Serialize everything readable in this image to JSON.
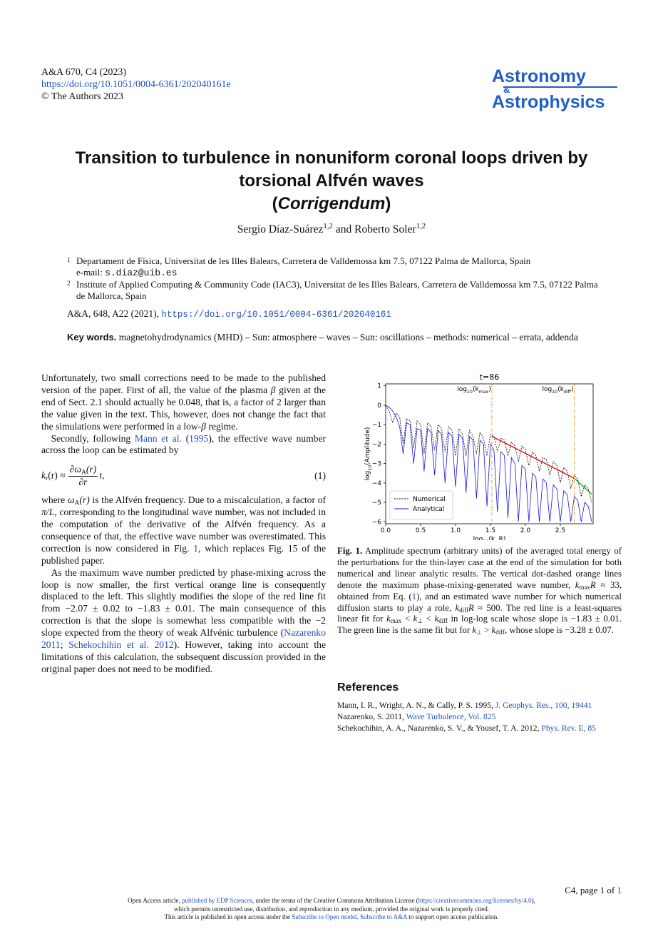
{
  "header": {
    "journal": "A&A 670, C4 (2023)",
    "doi": "https://doi.org/10.1051/0004-6361/202040161e",
    "copyright": "© The Authors 2023",
    "logo": [
      "Astronomy",
      "&",
      "Astrophysics"
    ]
  },
  "title": {
    "main": "Transition to turbulence in nonuniform coronal loops driven by torsional Alfvén waves",
    "sub": [
      "(",
      "Corrigendum",
      ")"
    ]
  },
  "authors": {
    "list": [
      {
        "name": "Sergio Díaz-Suárez",
        "aff": "1,2"
      },
      {
        "name": "Roberto Soler",
        "aff": "1,2"
      }
    ],
    "joiner": "and"
  },
  "affiliations": [
    {
      "num": "1",
      "text": "Departament de Física, Universitat de les Illes Balears, Carretera de Valldemossa km 7.5, 07122 Palma de Mallorca, Spain",
      "email_label": "e-mail:",
      "email": "s.diaz@uib.es"
    },
    {
      "num": "2",
      "text": "Institute of Applied Computing & Community Code (IAC3), Universitat de les Illes Balears, Carretera de Valldemossa km 7.5, 07122 Palma de Mallorca, Spain"
    }
  ],
  "citation": {
    "text": "A&A, 648, A22 (2021),",
    "link": "https://doi.org/10.1051/0004-6361/202040161"
  },
  "keywords": {
    "label": "Key words.",
    "text": "magnetohydrodynamics (MHD) – Sun: atmosphere – waves – Sun: oscillations – methods: numerical – errata, addenda"
  },
  "body": {
    "paragraphs": [
      [
        "Unfortunately, two small corrections need to be made to the published version of the paper. First of all, the value of the plasma ",
        "β",
        " given at the end of Sect. 2.1 should actually be 0.048, that is, a factor of 2 larger than the value given in the text. This, however, does not change the fact that the simulations were performed in a low-",
        "β",
        " regime."
      ],
      [
        "Secondly, following ",
        "Mann et al.",
        " (",
        "1995",
        "), the effective wave number across the loop can be estimated by"
      ],
      [
        "where ",
        "ω",
        "A",
        "(r)",
        " is the Alfvén frequency. Due to a miscalculation, a factor of ",
        "π/L",
        ", corresponding to the longitudinal wave number, was not included in the computation of the derivative of the Alfvén frequency. As a consequence of that, the effective wave number was overestimated. This correction is now considered in Fig. ",
        "1",
        ", which replaces Fig. 15 of the published paper."
      ],
      [
        "As the maximum wave number predicted by phase-mixing across the loop is now smaller, the first vertical orange line is consequently displaced to the left. This slightly modifies the slope of the red line fit from −2.07 ± 0.02 to −1.83 ± 0.01. The main consequence of this correction is that the slope is somewhat less compatible with the −2 slope expected from the theory of weak Alfvénic turbulence (",
        "Nazarenko 2011",
        "; ",
        "Schekochihin et al. 2012",
        "). However, taking into account the limitations of this calculation, the subsequent discussion provided in the original paper does not need to be modified."
      ]
    ],
    "equation": {
      "lhs": [
        "k",
        "r",
        "(r) ≈"
      ],
      "num": [
        "∂ω",
        "A",
        "(r)"
      ],
      "den": "∂r",
      "rhs": "t,",
      "number": "(1)"
    }
  },
  "figure": {
    "caption": [
      "Fig. 1.",
      " Amplitude spectrum (arbitrary units) of the averaged total energy of the perturbations for the thin-layer case at the end of the simulation for both numerical and linear analytic results. The vertical dot-dashed orange lines denote the maximum phase-mixing-generated wave number, ",
      "k",
      "max",
      "R",
      " ≈ 33, obtained from Eq. (",
      "1",
      "), and an estimated wave number for which numerical diffusion starts to play a role, ",
      "k",
      "diff",
      "R",
      " ≈ 500. The red line is a least-squares linear fit for ",
      "k",
      "max",
      " < ",
      "k",
      "⊥",
      " < ",
      "k",
      "diff",
      " in log-log scale whose slope is −1.83 ± 0.01. The green line is the same fit but for ",
      "k",
      "⊥",
      " > ",
      "k",
      "diff",
      ", whose slope is −3.28 ± 0.07."
    ]
  },
  "chart_data": {
    "type": "line",
    "title": "t=86",
    "xlabel": [
      "log",
      "10",
      "(k",
      "⊥",
      "R)"
    ],
    "ylabel": [
      "log",
      "10",
      "(Amplitude)"
    ],
    "xlim": [
      0,
      2.97
    ],
    "ylim": [
      -6.1,
      1.1
    ],
    "xticks": [
      {
        "value": 0,
        "label": "0.0"
      },
      {
        "value": 0.5,
        "label": "0.5"
      },
      {
        "value": 1,
        "label": "1.0"
      },
      {
        "value": 1.5,
        "label": "1.5"
      },
      {
        "value": 2,
        "label": "2.0"
      },
      {
        "value": 2.5,
        "label": "2.5"
      }
    ],
    "yticks": [
      {
        "value": -6,
        "label": "−6"
      },
      {
        "value": -5,
        "label": "−5"
      },
      {
        "value": -4,
        "label": "−4"
      },
      {
        "value": -3,
        "label": "−3"
      },
      {
        "value": -2,
        "label": "−2"
      },
      {
        "value": -1,
        "label": "−1"
      },
      0,
      1
    ],
    "legend": "lower left",
    "series": [
      {
        "name": "Numerical",
        "color": "#000000",
        "linestyle": "dashed",
        "x": [
          0,
          0.05,
          0.1,
          0.15,
          0.2,
          0.25,
          0.3,
          0.35,
          0.4,
          0.45,
          0.5,
          0.55,
          0.6,
          0.65,
          0.7,
          0.75,
          0.8,
          0.85,
          0.9,
          0.95,
          1,
          1.05,
          1.1,
          1.15,
          1.2,
          1.25,
          1.3,
          1.35,
          1.4,
          1.45,
          1.5,
          1.55,
          1.6,
          1.65,
          1.7,
          1.75,
          1.8,
          1.85,
          1.9,
          1.95,
          2,
          2.05,
          2.1,
          2.15,
          2.2,
          2.25,
          2.3,
          2.35,
          2.4,
          2.45,
          2.5,
          2.55,
          2.6,
          2.65,
          2.7,
          2.75,
          2.8,
          2.85,
          2.9,
          2.95
        ],
        "values": [
          0,
          -0.3,
          -0.9,
          -0.4,
          -0.6,
          -2.0,
          -0.7,
          -0.8,
          -2.2,
          -0.8,
          -1.0,
          -2.5,
          -0.9,
          -1.1,
          -2.3,
          -1.0,
          -1.2,
          -2.4,
          -1.1,
          -1.3,
          -2.6,
          -1.2,
          -1.5,
          -2.6,
          -1.3,
          -1.6,
          -2.5,
          -1.4,
          -1.7,
          -2.6,
          -1.5,
          -1.6,
          -2.4,
          -1.7,
          -1.8,
          -2.6,
          -1.9,
          -2.1,
          -2.9,
          -2.1,
          -2.3,
          -3.1,
          -2.4,
          -2.6,
          -3.4,
          -2.7,
          -2.8,
          -3.6,
          -2.9,
          -3.1,
          -4.0,
          -3.2,
          -3.4,
          -4.3,
          -3.6,
          -3.8,
          -4.7,
          -4.1,
          -4.3,
          -5.0
        ]
      },
      {
        "name": "Analytical",
        "color": "#1414e6",
        "linestyle": "solid",
        "x": [
          0,
          0.05,
          0.1,
          0.15,
          0.2,
          0.25,
          0.3,
          0.35,
          0.4,
          0.45,
          0.5,
          0.55,
          0.6,
          0.65,
          0.7,
          0.75,
          0.8,
          0.85,
          0.9,
          0.95,
          1,
          1.05,
          1.1,
          1.15,
          1.2,
          1.25,
          1.3,
          1.35,
          1.4,
          1.45,
          1.5,
          1.55,
          1.6,
          1.65,
          1.7,
          1.75,
          1.8,
          1.85,
          1.9,
          1.95,
          2,
          2.05,
          2.1,
          2.15,
          2.2,
          2.25,
          2.3,
          2.35,
          2.4,
          2.45,
          2.5,
          2.55,
          2.6,
          2.65,
          2.7,
          2.75,
          2.8,
          2.85,
          2.9,
          2.95
        ],
        "values": [
          0,
          -0.1,
          -0.3,
          -0.6,
          -1.1,
          -2.5,
          -0.9,
          -1.0,
          -3.0,
          -1.2,
          -1.3,
          -3.4,
          -1.2,
          -1.4,
          -3.6,
          -1.3,
          -1.5,
          -4.0,
          -1.4,
          -1.6,
          -4.2,
          -1.5,
          -1.7,
          -4.5,
          -1.6,
          -1.8,
          -4.8,
          -1.8,
          -2.0,
          -5.2,
          -2.0,
          -2.3,
          -5.5,
          -2.4,
          -2.6,
          -5.8,
          -2.7,
          -3.0,
          -6.0,
          -3.1,
          -3.3,
          -6.0,
          -3.5,
          -3.7,
          -6.0,
          -3.8,
          -4.0,
          -6.0,
          -4.1,
          -4.3,
          -6.0,
          -4.4,
          -4.6,
          -6.0,
          -4.7,
          -4.9,
          -6.0,
          -5.0,
          -5.2,
          -6.0
        ]
      }
    ],
    "fits": [
      {
        "color": "#e00000",
        "x": [
          1.52,
          2.7
        ],
        "values": [
          -1.6,
          -3.76
        ]
      },
      {
        "color": "#00b000",
        "x": [
          2.7,
          2.95
        ],
        "values": [
          -3.76,
          -4.58
        ]
      }
    ],
    "vlines": [
      {
        "x": 1.52,
        "color": "#f0a020",
        "label": [
          "log",
          "10",
          "(k",
          "max",
          ")"
        ]
      },
      {
        "x": 2.7,
        "color": "#f0a020",
        "label": [
          "log",
          "10",
          "(k",
          "diff",
          ")"
        ]
      }
    ]
  },
  "references": {
    "title": "References",
    "items": [
      [
        "Mann, I. R., Wright, A. N., & Cally, P. S. 1995, ",
        "J. Geophys. Res., 100, 19441"
      ],
      [
        "Nazarenko, S. 2011, ",
        "Wave Turbulence, Vol. 825"
      ],
      [
        "Schekochihin, A. A., Nazarenko, S. V., & Yousef, T. A. 2012, ",
        "Phys. Rev. E, 85"
      ]
    ]
  },
  "footer": {
    "page": [
      "C4, page 1 of ",
      "1"
    ],
    "license": [
      [
        "Open Access article, ",
        "published by EDP Sciences",
        ", under the terms of the Creative Commons Attribution License (",
        "https://creativecommons.org/licenses/by/4.0",
        "),"
      ],
      [
        "which permits unrestricted use, distribution, and reproduction in any medium, provided the original work is properly cited."
      ],
      [
        "This article is published in open access under the ",
        "Subscribe to Open model",
        ". ",
        "Subscribe to A&A",
        " to support open access publication."
      ]
    ]
  }
}
